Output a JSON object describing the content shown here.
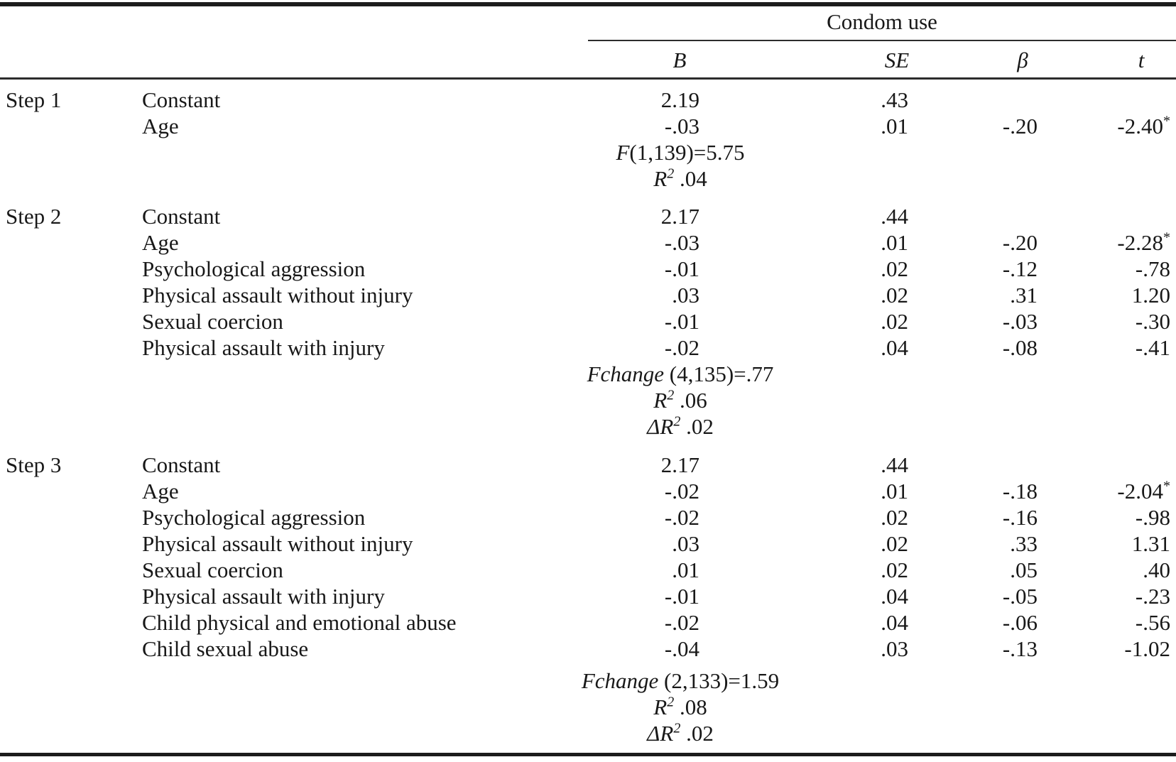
{
  "table": {
    "spanner_label": "Condom use",
    "column_headers": {
      "b": "B",
      "se": "SE",
      "beta": "β",
      "t": "t"
    },
    "sig_marker": "*",
    "steps": [
      {
        "step_label": "Step 1",
        "rows": [
          {
            "predictor": "Constant",
            "B": "2.19",
            "SE": ".43",
            "beta": "",
            "t": "",
            "sig": false
          },
          {
            "predictor": "Age",
            "B": "-.03",
            "SE": ".01",
            "beta": "-.20",
            "t": "-2.40",
            "sig": true
          }
        ],
        "stats": [
          {
            "italic": "F",
            "sup": "",
            "rest": "(1,139)=5.75"
          },
          {
            "italic": "R",
            "sup": "2",
            "rest": " .04"
          }
        ]
      },
      {
        "step_label": "Step 2",
        "rows": [
          {
            "predictor": "Constant",
            "B": "2.17",
            "SE": ".44",
            "beta": "",
            "t": "",
            "sig": false
          },
          {
            "predictor": "Age",
            "B": "-.03",
            "SE": ".01",
            "beta": "-.20",
            "t": "-2.28",
            "sig": true
          },
          {
            "predictor": "Psychological aggression",
            "B": "-.01",
            "SE": ".02",
            "beta": "-.12",
            "t": "-.78",
            "sig": false
          },
          {
            "predictor": "Physical assault without injury",
            "B": ".03",
            "SE": ".02",
            "beta": ".31",
            "t": "1.20",
            "sig": false
          },
          {
            "predictor": "Sexual coercion",
            "B": "-.01",
            "SE": ".02",
            "beta": "-.03",
            "t": "-.30",
            "sig": false
          },
          {
            "predictor": "Physical assault with injury",
            "B": "-.02",
            "SE": ".04",
            "beta": "-.08",
            "t": "-.41",
            "sig": false
          }
        ],
        "stats": [
          {
            "italic": "Fchange",
            "sup": "",
            "rest": " (4,135)=.77"
          },
          {
            "italic": "R",
            "sup": "2",
            "rest": " .06"
          },
          {
            "italic": "ΔR",
            "sup": "2",
            "rest": " .02"
          }
        ]
      },
      {
        "step_label": "Step 3",
        "rows": [
          {
            "predictor": "Constant",
            "B": "2.17",
            "SE": ".44",
            "beta": "",
            "t": "",
            "sig": false
          },
          {
            "predictor": "Age",
            "B": "-.02",
            "SE": ".01",
            "beta": "-.18",
            "t": "-2.04",
            "sig": true
          },
          {
            "predictor": "Psychological aggression",
            "B": "-.02",
            "SE": ".02",
            "beta": "-.16",
            "t": "-.98",
            "sig": false
          },
          {
            "predictor": "Physical assault without injury",
            "B": ".03",
            "SE": ".02",
            "beta": ".33",
            "t": "1.31",
            "sig": false
          },
          {
            "predictor": "Sexual coercion",
            "B": ".01",
            "SE": ".02",
            "beta": ".05",
            "t": ".40",
            "sig": false
          },
          {
            "predictor": "Physical assault with injury",
            "B": "-.01",
            "SE": ".04",
            "beta": "-.05",
            "t": "-.23",
            "sig": false
          },
          {
            "predictor": "Child physical and emotional abuse",
            "B": "-.02",
            "SE": ".04",
            "beta": "-.06",
            "t": "-.56",
            "sig": false
          },
          {
            "predictor": "Child sexual abuse",
            "B": "-.04",
            "SE": ".03",
            "beta": "-.13",
            "t": "-1.02",
            "sig": false
          }
        ],
        "stats": [
          {
            "italic": "Fchange",
            "sup": "",
            "rest": " (2,133)=1.59"
          },
          {
            "italic": "R",
            "sup": "2",
            "rest": " .08"
          },
          {
            "italic": "ΔR",
            "sup": "2",
            "rest": " .02"
          }
        ]
      }
    ]
  }
}
